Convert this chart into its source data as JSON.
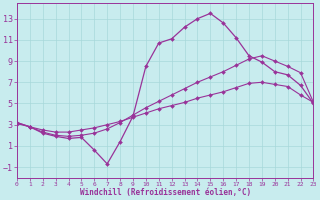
{
  "xlabel": "Windchill (Refroidissement éolien,°C)",
  "bg_color": "#c8ecee",
  "grid_color": "#a8d8da",
  "line_color": "#993399",
  "xlim": [
    0,
    23
  ],
  "ylim": [
    -2.0,
    14.5
  ],
  "yticks": [
    -1,
    1,
    3,
    5,
    7,
    9,
    11,
    13
  ],
  "xticks": [
    0,
    1,
    2,
    3,
    4,
    5,
    6,
    7,
    8,
    9,
    10,
    11,
    12,
    13,
    14,
    15,
    16,
    17,
    18,
    19,
    20,
    21,
    22,
    23
  ],
  "line1_x": [
    0,
    1,
    2,
    3,
    4,
    5,
    6,
    7,
    8,
    9,
    10,
    11,
    12,
    13,
    14,
    15,
    16,
    17,
    18,
    19,
    20,
    21,
    22,
    23
  ],
  "line1_y": [
    3.2,
    2.8,
    2.3,
    2.0,
    1.9,
    2.0,
    2.2,
    2.6,
    3.2,
    3.9,
    4.6,
    5.2,
    5.8,
    6.4,
    7.0,
    7.5,
    8.0,
    8.6,
    9.2,
    9.5,
    9.0,
    8.5,
    7.9,
    5.1
  ],
  "line2_x": [
    0,
    1,
    2,
    3,
    4,
    5,
    6,
    7,
    8,
    9,
    10,
    11,
    12,
    13,
    14,
    15,
    16,
    17,
    18,
    19,
    20,
    21,
    22,
    23
  ],
  "line2_y": [
    3.1,
    2.8,
    2.5,
    2.3,
    2.3,
    2.5,
    2.7,
    3.0,
    3.3,
    3.7,
    4.1,
    4.5,
    4.8,
    5.1,
    5.5,
    5.8,
    6.1,
    6.5,
    6.9,
    7.0,
    6.8,
    6.6,
    5.8,
    5.1
  ],
  "line3_x": [
    0,
    1,
    2,
    3,
    4,
    5,
    6,
    7,
    8,
    9,
    10,
    11,
    12,
    13,
    14,
    15,
    16,
    17,
    18,
    19,
    20,
    21,
    22,
    23
  ],
  "line3_y": [
    3.2,
    2.8,
    2.2,
    1.9,
    1.7,
    1.8,
    0.6,
    -0.7,
    1.4,
    3.8,
    8.5,
    10.7,
    11.1,
    12.2,
    13.0,
    13.5,
    12.6,
    11.2,
    9.5,
    8.9,
    8.0,
    7.7,
    6.7,
    5.0
  ]
}
